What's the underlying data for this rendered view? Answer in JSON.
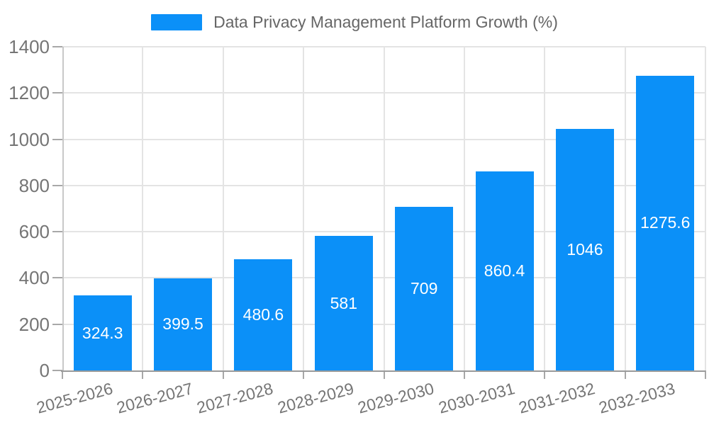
{
  "legend": {
    "label": "Data Privacy Management Platform Growth (%)",
    "swatch_color": "#0b90f8"
  },
  "chart_data": {
    "type": "bar",
    "title": "Data Privacy Management Platform Growth (%)",
    "categories": [
      "2025-2026",
      "2026-2027",
      "2027-2028",
      "2028-2029",
      "2029-2030",
      "2030-2031",
      "2031-2032",
      "2032-2033"
    ],
    "values": [
      324.3,
      399.5,
      480.6,
      581,
      709,
      860.4,
      1046,
      1275.6
    ],
    "value_labels": [
      "324.3",
      "399.5",
      "480.6",
      "581",
      "709",
      "860.4",
      "1046",
      "1275.6"
    ],
    "xlabel": "",
    "ylabel": "",
    "ylim": [
      0,
      1400
    ],
    "yticks": [
      0,
      200,
      400,
      600,
      800,
      1000,
      1200,
      1400
    ],
    "grid": true,
    "legend_position": "top-center",
    "x_label_rotation_deg": -15,
    "colors": {
      "bar": "#0b90f8",
      "value_label": "#ffffff",
      "axis_text": "#757575",
      "legend_text": "#666666",
      "gridline": "#e4e4e4",
      "y_axis_line": "#c8c8c8",
      "x_axis_line": "#9a9a9a",
      "tick": "#a8a8a8"
    }
  }
}
